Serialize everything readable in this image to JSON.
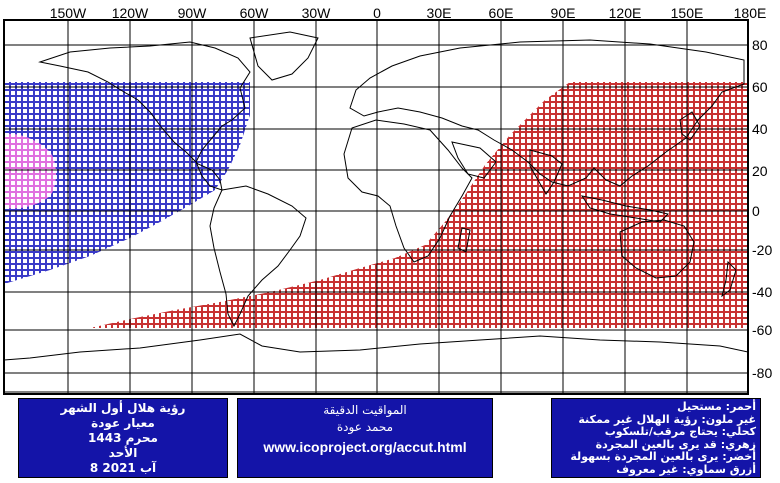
{
  "map": {
    "lon_labels": [
      "150W",
      "120W",
      "90W",
      "60W",
      "30W",
      "0",
      "30E",
      "60E",
      "90E",
      "120E",
      "150E",
      "180E"
    ],
    "lat_labels": [
      "80",
      "60",
      "40",
      "20",
      "0",
      "-20",
      "-40",
      "-60",
      "-80"
    ],
    "colors": {
      "red": "#c83232",
      "blue": "#3a3ac8",
      "magenta": "#e070e0",
      "land_outline": "#000000",
      "grid": "#000000",
      "footer_bg": "#1414a8",
      "footer_text": "#ffffff"
    }
  },
  "box_left": {
    "line1": "رؤية هلال أول الشهر",
    "line2": "معيار عودة",
    "line3": "محرم 1443",
    "line4": "الأحد",
    "line5": "8 آب 2021"
  },
  "box_mid": {
    "line1": "المواقيت الدقيقة",
    "line2": "محمد عودة",
    "url": "www.icoproject.org/accut.html"
  },
  "box_right": {
    "line1": "أحمر: مستحيل",
    "line2": "غير ملون: رؤية الهلال غير ممكنة",
    "line3": "كحلي: يحتاج مرقب/تلسكوب",
    "line4": "زهري: قد يرى بالعين المجردة",
    "line5": "أخضر: يرى بالعين المجردة بسهولة",
    "line6": "أزرق سماوي: غير معروف"
  }
}
